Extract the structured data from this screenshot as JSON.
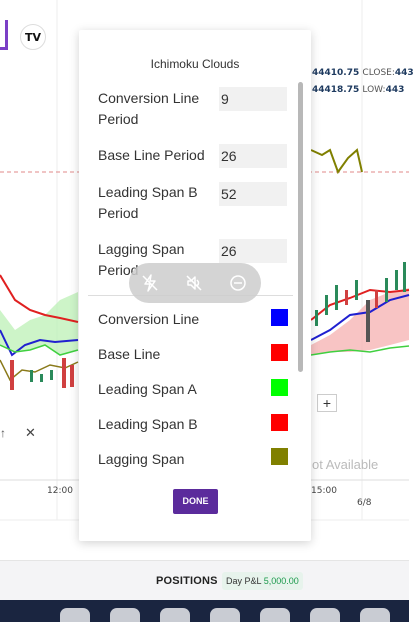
{
  "toolbar": {
    "logo_text": "TV"
  },
  "ohlc": {
    "row1": {
      "value": "44410.75",
      "label": "CLOSE:",
      "value2": "443"
    },
    "row2": {
      "value": "44418.75",
      "label": "LOW:",
      "value2": "443"
    }
  },
  "time_axis": {
    "left": "12:00",
    "right_a": "15:00",
    "right_b": "6/8"
  },
  "chart_overlay": {
    "not_available": "ot Available",
    "plus": "+",
    "arrow": "↑",
    "close": "✕"
  },
  "modal": {
    "title": "Ichimoku Clouds",
    "fields": [
      {
        "label": "Conversion Line Period",
        "value": "9"
      },
      {
        "label": "Base Line Period",
        "value": "26"
      },
      {
        "label": "Leading Span B Period",
        "value": "52"
      },
      {
        "label": "Lagging Span Period",
        "value": "26"
      }
    ],
    "colors": [
      {
        "label": "Conversion Line",
        "color": "#0000ff"
      },
      {
        "label": "Base Line",
        "color": "#ff0000"
      },
      {
        "label": "Leading Span A",
        "color": "#00ff00"
      },
      {
        "label": "Leading Span B",
        "color": "#ff0000"
      },
      {
        "label": "Lagging Span",
        "color": "#808000"
      }
    ],
    "done_label": "DONE"
  },
  "bottom": {
    "positions_label": "POSITIONS",
    "pl_label": "Day P&L",
    "pl_value": "5,000.00"
  },
  "float_bar": {
    "icons": [
      "flash-off-icon",
      "mute-icon",
      "minus-circle-icon"
    ]
  },
  "colors": {
    "accent": "#5b2b9c",
    "profit": "#1c9a4c"
  }
}
